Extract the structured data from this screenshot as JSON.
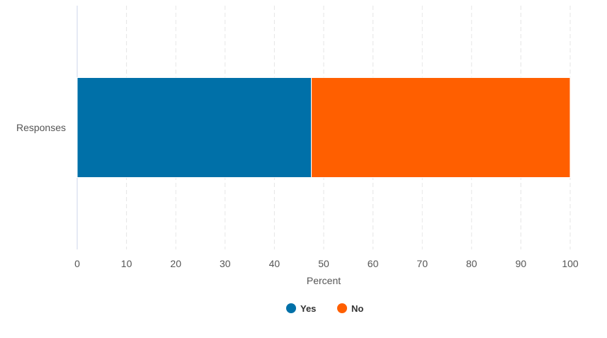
{
  "chart_data": {
    "type": "bar",
    "orientation": "horizontal",
    "stacked": true,
    "categories": [
      "Responses"
    ],
    "series": [
      {
        "name": "Yes",
        "values": [
          47.5
        ],
        "color": "#0070a8"
      },
      {
        "name": "No",
        "values": [
          52.5
        ],
        "color": "#ff5f00"
      }
    ],
    "xlabel": "Percent",
    "xlim": [
      0,
      100
    ],
    "xticks": [
      0,
      10,
      20,
      30,
      40,
      50,
      60,
      70,
      80,
      90,
      100
    ],
    "grid": true,
    "legend_position": "bottom-center"
  }
}
